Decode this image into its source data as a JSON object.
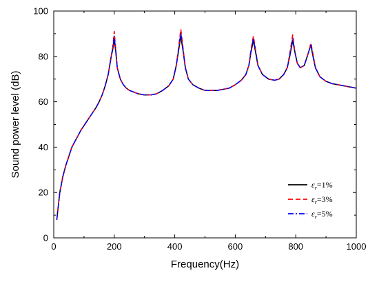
{
  "chart_data": {
    "type": "line",
    "xlabel": "Frequency(Hz)",
    "ylabel": "Sound power level (dB)",
    "xlim": [
      0,
      1000
    ],
    "ylim": [
      0,
      100
    ],
    "xticks": [
      0,
      200,
      400,
      600,
      800,
      1000
    ],
    "yticks": [
      0,
      20,
      40,
      60,
      80,
      100
    ],
    "grid": false,
    "legend_position": "bottom-right",
    "colors": {
      "s1": "#000000",
      "s2": "#ff0000",
      "s3": "#0000ff"
    },
    "x": [
      10,
      20,
      30,
      40,
      50,
      60,
      70,
      80,
      90,
      100,
      110,
      120,
      130,
      140,
      150,
      160,
      170,
      180,
      185,
      190,
      195,
      200,
      205,
      210,
      220,
      230,
      240,
      250,
      260,
      280,
      300,
      320,
      340,
      360,
      380,
      395,
      405,
      412,
      420,
      428,
      435,
      445,
      460,
      480,
      500,
      520,
      540,
      560,
      580,
      600,
      620,
      635,
      645,
      652,
      660,
      667,
      675,
      690,
      710,
      730,
      745,
      760,
      772,
      780,
      790,
      797,
      805,
      815,
      828,
      838,
      845,
      850,
      857,
      865,
      880,
      900,
      920,
      940,
      960,
      980,
      1000
    ],
    "series": [
      {
        "name": "1%",
        "style": "solid",
        "values": [
          8,
          20,
          27,
          32,
          36,
          40,
          42.5,
          45,
          47.5,
          49.5,
          51.5,
          53.5,
          55.5,
          57.5,
          60,
          63,
          67,
          72,
          76,
          80,
          83,
          87.5,
          82,
          75,
          70,
          67.5,
          66,
          65,
          64.5,
          63.5,
          63,
          63,
          63.5,
          65,
          67,
          70,
          76,
          82,
          89,
          82,
          75,
          70,
          67.5,
          66,
          65,
          65,
          65,
          65.5,
          66,
          67.5,
          69.5,
          72,
          76,
          82,
          87,
          82,
          76,
          72,
          70,
          69.5,
          70,
          72,
          75,
          80,
          87,
          82,
          77,
          75,
          76,
          80,
          83,
          85,
          80,
          75,
          71,
          69,
          68,
          67.5,
          67,
          66.5,
          66
        ]
      },
      {
        "name": "3%",
        "style": "dashed",
        "values": [
          8,
          20,
          27,
          32,
          36,
          40,
          42.5,
          45,
          47.5,
          49.5,
          51.5,
          53.5,
          55.5,
          57.5,
          60,
          63,
          67,
          72,
          76,
          80,
          84,
          91,
          83,
          75,
          70,
          67.5,
          66,
          65,
          64.5,
          63.5,
          63,
          63,
          63.5,
          65,
          67,
          70,
          76,
          83,
          92,
          83,
          75,
          70,
          67.5,
          66,
          65,
          65,
          65,
          65.5,
          66,
          67.5,
          69.5,
          72,
          76,
          83,
          89,
          83,
          76,
          72,
          70,
          69.5,
          70,
          72,
          75,
          81,
          89.5,
          82,
          77,
          75,
          76,
          80,
          83,
          86,
          81,
          75,
          71,
          69,
          68,
          67.5,
          67,
          66.5,
          66
        ]
      },
      {
        "name": "5%",
        "style": "dashdot",
        "values": [
          8,
          20,
          27,
          32,
          36,
          40,
          42.5,
          45,
          47.5,
          49.5,
          51.5,
          53.5,
          55.5,
          57.5,
          60,
          63,
          67,
          72,
          76,
          80,
          84,
          89,
          82.5,
          75,
          70,
          67.5,
          66,
          65,
          64.5,
          63.5,
          63,
          63,
          63.5,
          65,
          67,
          70,
          76,
          82.5,
          90.5,
          82.5,
          75,
          70,
          67.5,
          66,
          65,
          65,
          65,
          65.5,
          66,
          67.5,
          69.5,
          72,
          76,
          82.5,
          88,
          82.5,
          76,
          72,
          70,
          69.5,
          70,
          72,
          75,
          80.5,
          88,
          82,
          77,
          75,
          76,
          80,
          83,
          85.5,
          80.5,
          75,
          71,
          69,
          68,
          67.5,
          67,
          66.5,
          66
        ]
      }
    ],
    "legend": {
      "symbol": "ε",
      "subscript": "r",
      "entries": [
        "=1%",
        "=3%",
        "=5%"
      ]
    }
  }
}
